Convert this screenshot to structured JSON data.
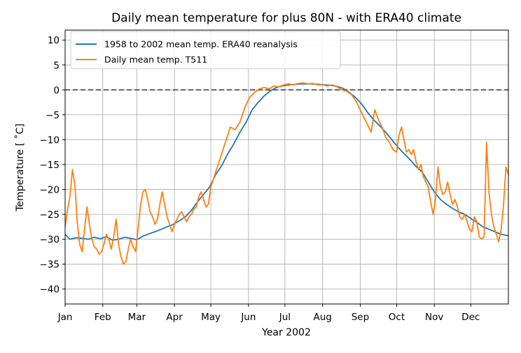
{
  "chart_data": {
    "type": "line",
    "title": "Daily mean temperature for plus 80N - with ERA40 climate",
    "xlabel": "Year 2002",
    "ylabel": "Temperature [ ˚C]",
    "xlim": [
      1,
      366
    ],
    "ylim": [
      -43,
      12
    ],
    "grid": true,
    "legend_position": "top-left",
    "x_ticks": [
      {
        "label": "Jan",
        "day": 1
      },
      {
        "label": "Feb",
        "day": 32
      },
      {
        "label": "Mar",
        "day": 60
      },
      {
        "label": "Apr",
        "day": 91
      },
      {
        "label": "May",
        "day": 121
      },
      {
        "label": "Jun",
        "day": 152
      },
      {
        "label": "Jul",
        "day": 182
      },
      {
        "label": "Aug",
        "day": 213
      },
      {
        "label": "Sep",
        "day": 244
      },
      {
        "label": "Oct",
        "day": 274
      },
      {
        "label": "Nov",
        "day": 305
      },
      {
        "label": "Dec",
        "day": 335
      }
    ],
    "y_ticks": [
      10,
      5,
      0,
      -5,
      -10,
      -15,
      -20,
      -25,
      -30,
      -35,
      -40
    ],
    "y_tick_labels": [
      "10",
      "5",
      "0",
      "−5",
      "−10",
      "−15",
      "−20",
      "−25",
      "−30",
      "−35",
      "−40"
    ],
    "reference_line": {
      "y": 0,
      "style": "dashed",
      "color": "#555555"
    },
    "series": [
      {
        "name": "1958 to 2002 mean temp. ERA40 reanalysis",
        "color": "#1f77b4",
        "x": [
          1,
          5,
          10,
          15,
          20,
          25,
          30,
          35,
          40,
          45,
          50,
          55,
          60,
          65,
          70,
          75,
          80,
          85,
          90,
          95,
          100,
          105,
          110,
          115,
          120,
          125,
          130,
          135,
          140,
          145,
          150,
          155,
          160,
          165,
          170,
          175,
          180,
          185,
          190,
          195,
          200,
          205,
          210,
          215,
          220,
          225,
          230,
          235,
          240,
          245,
          250,
          255,
          260,
          265,
          270,
          275,
          280,
          285,
          290,
          295,
          300,
          305,
          310,
          315,
          320,
          325,
          330,
          335,
          340,
          345,
          350,
          355,
          360,
          366
        ],
        "y": [
          -29.0,
          -30.0,
          -29.7,
          -29.8,
          -30.0,
          -29.6,
          -29.9,
          -29.5,
          -30.2,
          -30.0,
          -29.6,
          -29.8,
          -30.1,
          -29.4,
          -28.9,
          -28.5,
          -28.0,
          -27.5,
          -27.0,
          -26.3,
          -25.5,
          -24.2,
          -22.5,
          -21.0,
          -19.5,
          -17.0,
          -15.2,
          -12.8,
          -10.8,
          -8.5,
          -6.5,
          -4.0,
          -2.5,
          -1.2,
          -0.2,
          0.5,
          0.8,
          1.0,
          1.1,
          1.2,
          1.2,
          1.2,
          1.1,
          1.0,
          0.9,
          0.7,
          0.3,
          -0.5,
          -1.5,
          -2.8,
          -4.5,
          -6.0,
          -7.2,
          -8.5,
          -10.0,
          -11.5,
          -12.8,
          -14.0,
          -15.4,
          -16.5,
          -18.5,
          -20.5,
          -22.0,
          -23.0,
          -23.8,
          -24.5,
          -25.0,
          -25.8,
          -26.6,
          -27.5,
          -28.0,
          -28.5,
          -29.0,
          -29.3
        ]
      },
      {
        "name": "Daily mean temp. T511",
        "color": "#ff7f0e",
        "x": [
          1,
          3,
          5,
          7,
          9,
          11,
          13,
          15,
          17,
          19,
          21,
          23,
          25,
          27,
          29,
          31,
          33,
          35,
          37,
          39,
          41,
          43,
          45,
          47,
          49,
          51,
          53,
          55,
          57,
          59,
          61,
          63,
          65,
          67,
          69,
          71,
          73,
          75,
          77,
          79,
          81,
          83,
          85,
          87,
          89,
          91,
          93,
          95,
          97,
          99,
          101,
          103,
          105,
          107,
          109,
          111,
          113,
          115,
          117,
          119,
          121,
          125,
          129,
          133,
          137,
          141,
          145,
          149,
          153,
          157,
          161,
          165,
          169,
          173,
          177,
          181,
          185,
          189,
          193,
          197,
          201,
          205,
          209,
          213,
          217,
          221,
          225,
          229,
          233,
          237,
          241,
          245,
          249,
          253,
          256,
          259,
          262,
          265,
          268,
          271,
          274,
          276,
          278,
          280,
          282,
          284,
          286,
          288,
          290,
          292,
          294,
          296,
          298,
          300,
          302,
          304,
          306,
          308,
          310,
          312,
          314,
          316,
          318,
          320,
          322,
          324,
          326,
          328,
          330,
          332,
          334,
          336,
          338,
          340,
          342,
          344,
          346,
          348,
          350,
          352,
          354,
          356,
          358,
          360,
          362,
          364,
          366
        ],
        "y": [
          -27.5,
          -24.0,
          -21.5,
          -16.0,
          -19.0,
          -26.5,
          -31.0,
          -32.5,
          -28.0,
          -23.5,
          -27.0,
          -30.0,
          -31.5,
          -32.0,
          -33.0,
          -32.5,
          -31.0,
          -29.0,
          -30.0,
          -32.0,
          -29.5,
          -26.0,
          -31.0,
          -33.5,
          -35.0,
          -34.5,
          -32.0,
          -30.0,
          -31.5,
          -32.5,
          -28.0,
          -23.5,
          -20.5,
          -20.0,
          -22.0,
          -24.5,
          -25.5,
          -27.0,
          -26.0,
          -23.0,
          -20.5,
          -23.0,
          -25.5,
          -27.0,
          -28.5,
          -27.0,
          -26.0,
          -25.0,
          -24.5,
          -25.5,
          -26.5,
          -25.5,
          -25.0,
          -24.0,
          -23.5,
          -21.5,
          -20.5,
          -22.0,
          -23.5,
          -23.0,
          -19.5,
          -16.5,
          -13.5,
          -10.5,
          -7.5,
          -8.0,
          -6.5,
          -3.5,
          -1.5,
          -0.5,
          0.2,
          0.5,
          0.2,
          0.8,
          0.6,
          1.0,
          1.2,
          1.0,
          1.3,
          1.4,
          1.2,
          1.3,
          1.0,
          1.0,
          0.8,
          1.0,
          0.6,
          0.0,
          -0.3,
          -1.0,
          -2.5,
          -4.5,
          -6.5,
          -8.5,
          -4.0,
          -6.0,
          -7.5,
          -9.5,
          -10.5,
          -12.0,
          -12.5,
          -9.0,
          -7.5,
          -10.0,
          -12.5,
          -12.0,
          -13.0,
          -12.0,
          -14.5,
          -16.0,
          -15.0,
          -17.5,
          -18.5,
          -19.5,
          -22.5,
          -25.0,
          -22.0,
          -15.5,
          -19.5,
          -21.0,
          -20.5,
          -18.5,
          -21.0,
          -23.0,
          -22.0,
          -23.5,
          -25.5,
          -26.0,
          -25.0,
          -26.5,
          -28.0,
          -28.5,
          -25.5,
          -26.5,
          -29.5,
          -30.0,
          -29.5,
          -10.5,
          -20.5,
          -25.0,
          -27.5,
          -29.0,
          -30.5,
          -28.0,
          -23.0,
          -15.5,
          -17.0
        ]
      }
    ]
  }
}
